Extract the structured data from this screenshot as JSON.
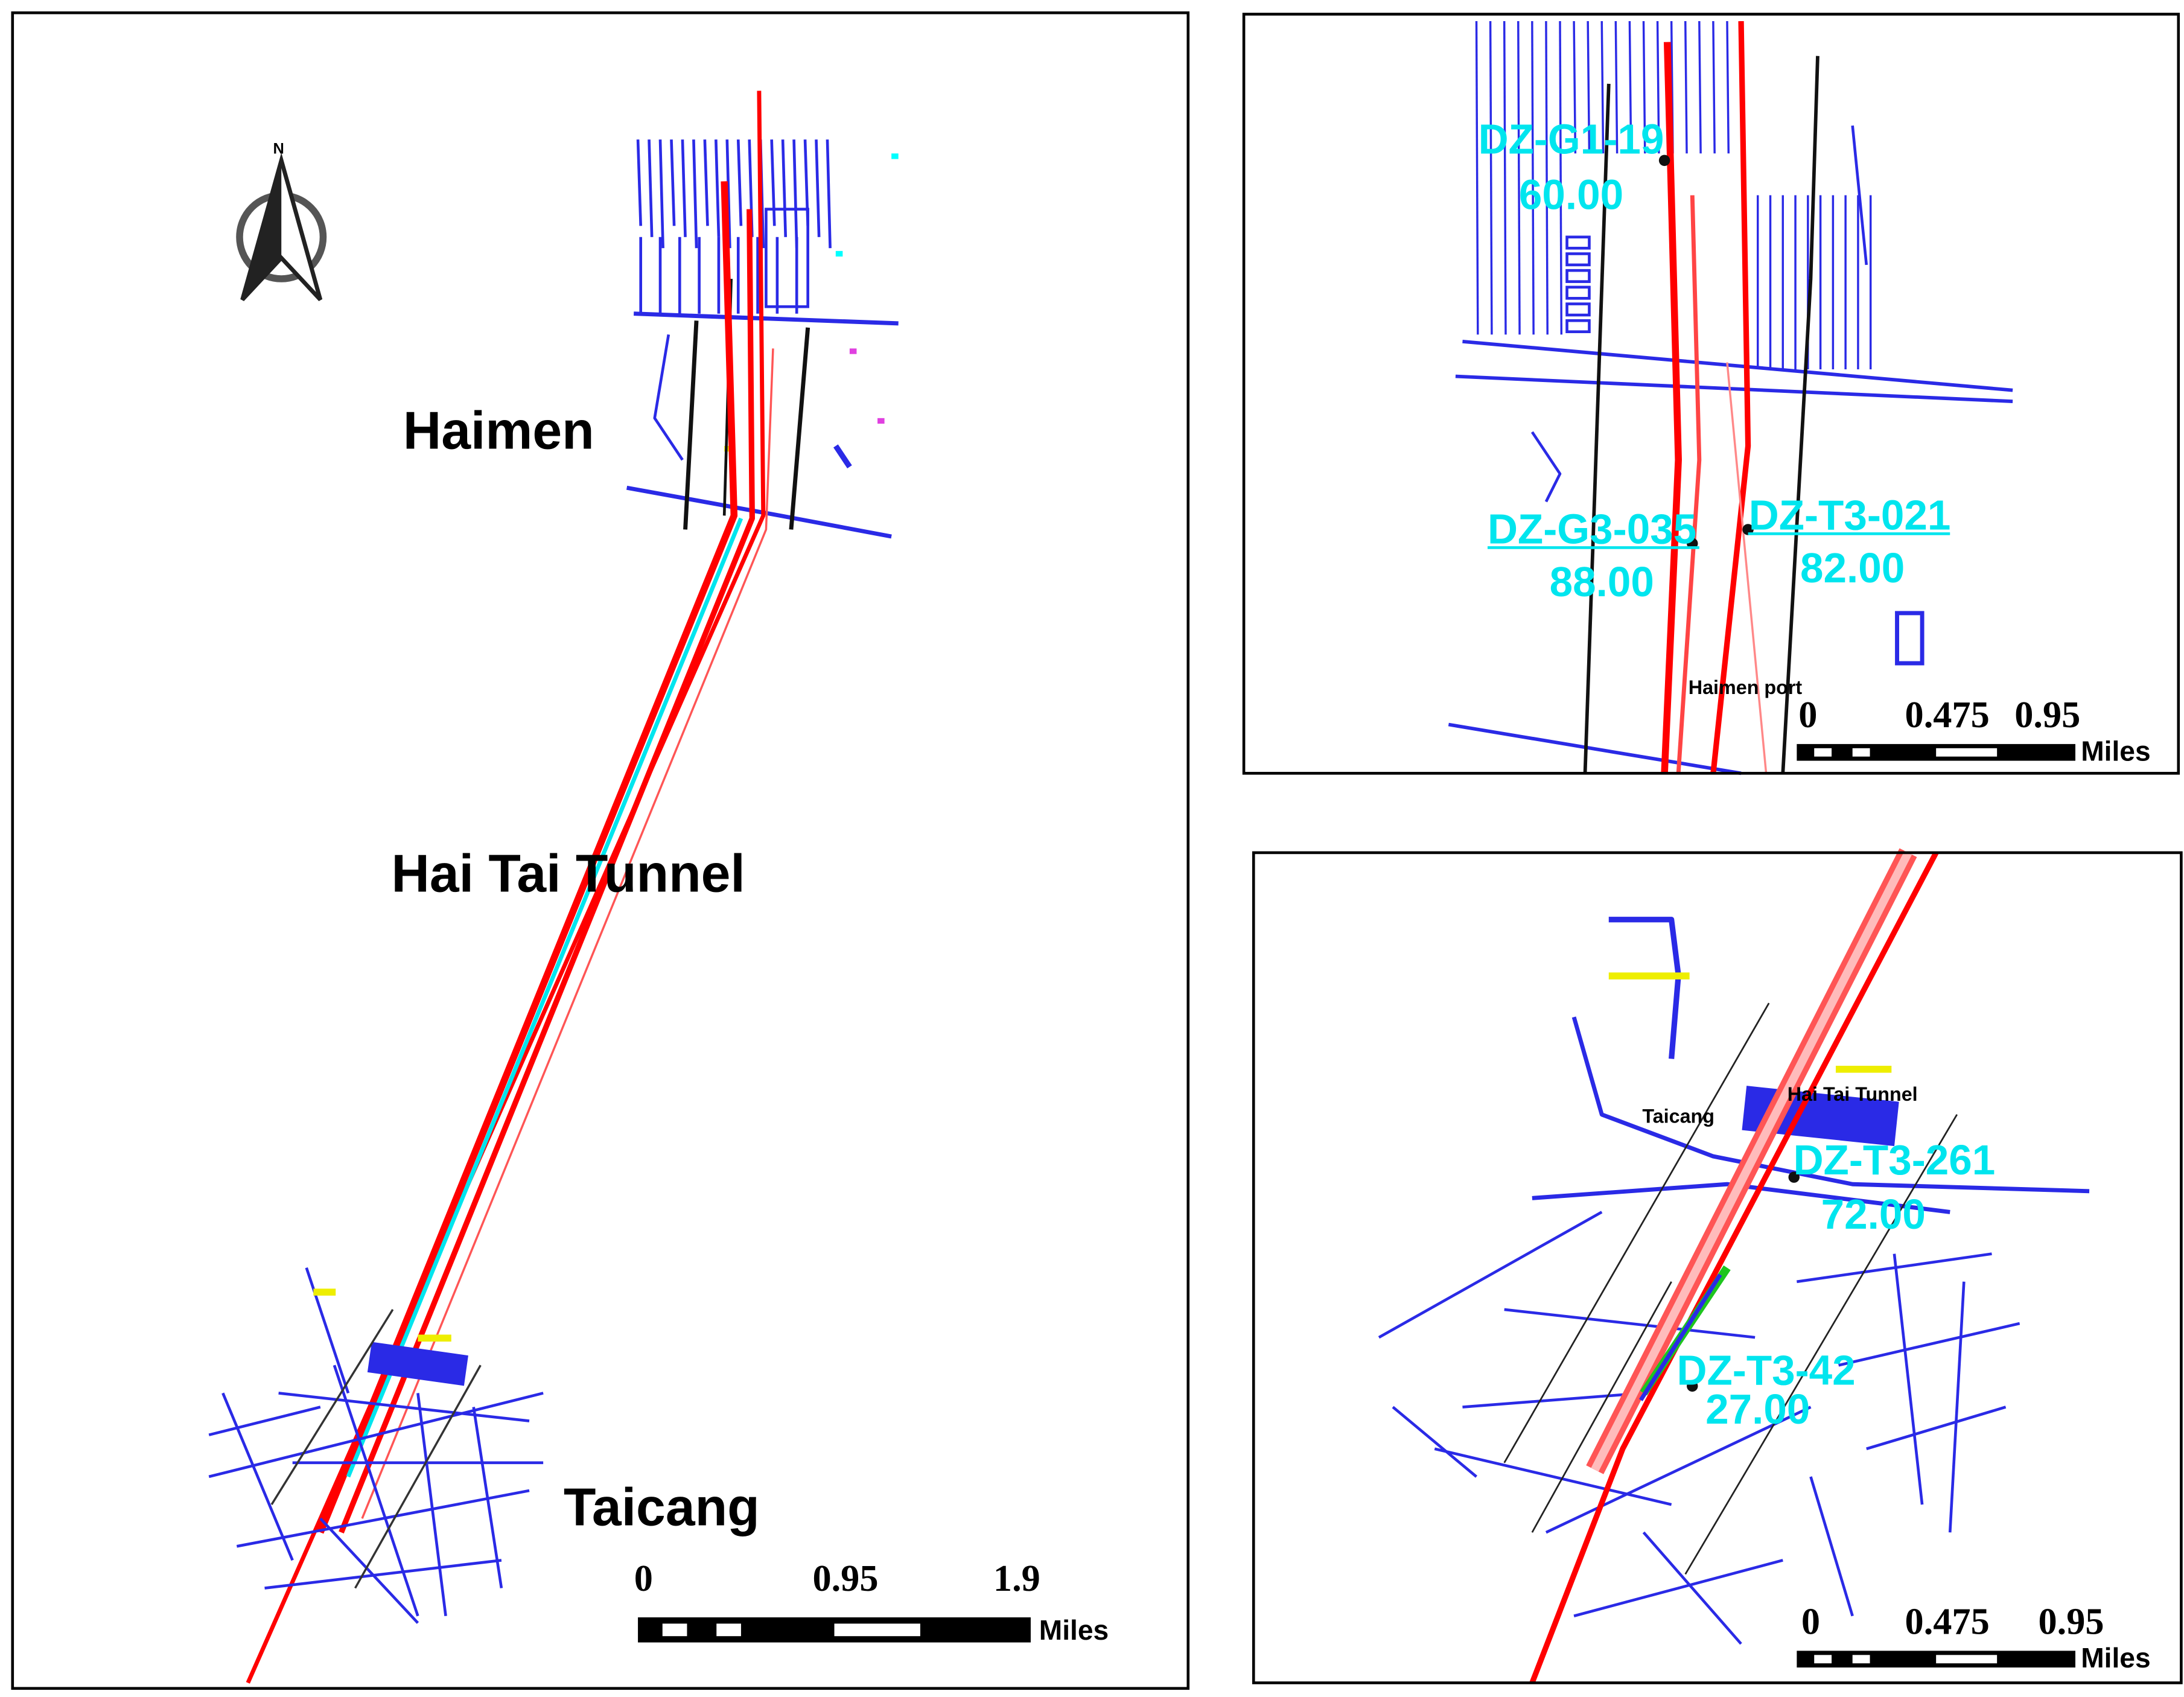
{
  "main_map": {
    "north_label": "N",
    "places": [
      "Haimen",
      "Hai Tai Tunnel",
      "Taicang"
    ],
    "scale_bar": {
      "labels": [
        "0",
        "0.95",
        "1.9"
      ],
      "unit": "Miles"
    }
  },
  "inset_haimen": {
    "boreholes": [
      {
        "id": "DZ-G1-19",
        "depth": "60.00"
      },
      {
        "id": "DZ-G3-035",
        "depth": "88.00"
      },
      {
        "id": "DZ-T3-021",
        "depth": "82.00"
      }
    ],
    "place": "Haimen port",
    "scale_bar": {
      "labels": [
        "0",
        "0.475",
        "0.95"
      ],
      "unit": "Miles"
    }
  },
  "inset_taicang": {
    "places": [
      "Hai Tai Tunnel",
      "Taicang"
    ],
    "boreholes": [
      {
        "id": "DZ-T3-261",
        "depth": "72.00"
      },
      {
        "id": "DZ-T3-42",
        "depth": "27.00"
      }
    ],
    "scale_bar": {
      "labels": [
        "0",
        "0.475",
        "0.95"
      ],
      "unit": "Miles"
    }
  }
}
